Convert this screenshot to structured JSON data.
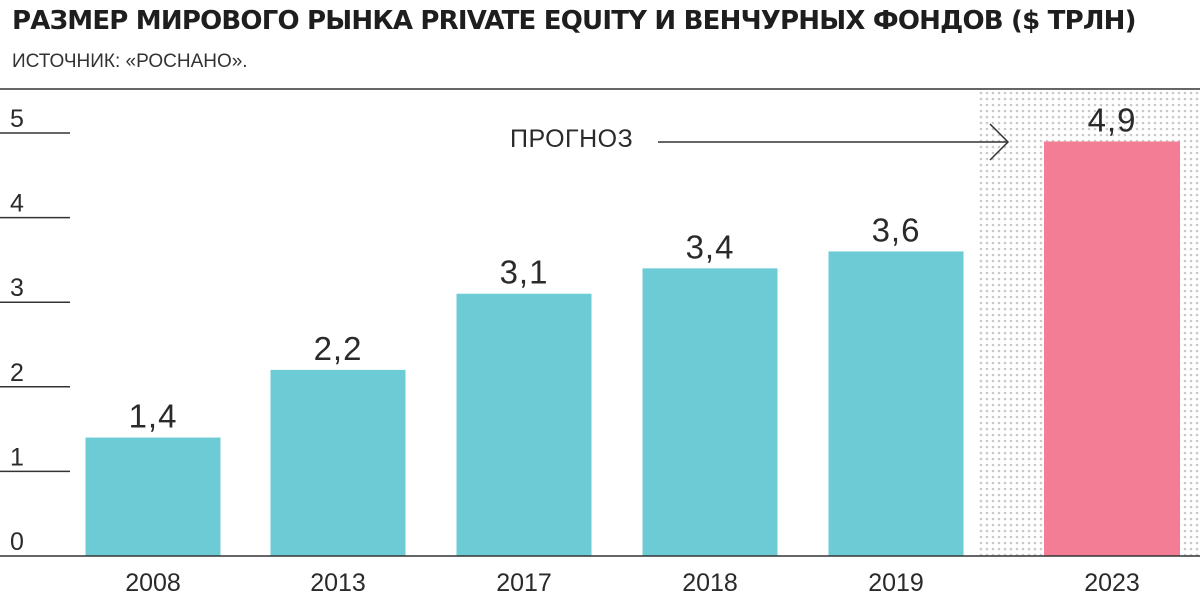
{
  "header": {
    "title": "РАЗМЕР МИРОВОГО РЫНКА PRIVATE EQUITY И ВЕНЧУРНЫХ ФОНДОВ ($ ТРЛН)",
    "subtitle": "ИСТОЧНИК: «РОСНАНО»."
  },
  "chart_data": {
    "type": "bar",
    "title": "РАЗМЕР МИРОВОГО РЫНКА PRIVATE EQUITY И ВЕНЧУРНЫХ ФОНДОВ ($ ТРЛН)",
    "xlabel": "",
    "ylabel": "",
    "categories": [
      "2008",
      "2013",
      "2017",
      "2018",
      "2019",
      "2023"
    ],
    "values": [
      1.4,
      2.2,
      3.1,
      3.4,
      3.6,
      4.9
    ],
    "data_labels": [
      "1,4",
      "2,2",
      "3,1",
      "3,4",
      "3,6",
      "4,9"
    ],
    "ylim": [
      0,
      5.5
    ],
    "yticks": [
      0,
      1,
      2,
      3,
      4,
      5
    ],
    "grid": false,
    "legend": "none",
    "forecast_index": 5,
    "annotation": "ПРОГНОЗ",
    "colors": {
      "bar": "#6dcbd6",
      "forecast_bar": "#f47d96",
      "forecast_bg_dots": "#c9c9c9",
      "text": "#2a2a2a",
      "axis": "#333333"
    }
  }
}
